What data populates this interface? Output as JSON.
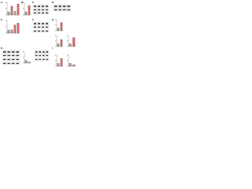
{
  "panel_labels": [
    "A",
    "B",
    "C",
    "D",
    "E",
    "F",
    "G",
    "H",
    "I"
  ],
  "chart_data": [
    {
      "type": "bar",
      "categories": [
        null,
        null,
        null,
        null
      ],
      "values": [
        1,
        2.8,
        1.2,
        3.5
      ],
      "colors": [
        "#9e9e9e",
        "#e06666",
        "#9e9e9e",
        "#e06666"
      ],
      "ylim": [
        0,
        4
      ],
      "yticks": [
        0,
        2,
        4
      ]
    },
    {
      "type": "bar",
      "categories": [
        null,
        null
      ],
      "values": [
        1,
        3
      ],
      "colors": [
        "#9e9e9e",
        "#e06666"
      ],
      "ylim": [
        0,
        4
      ],
      "yticks": [
        0,
        2,
        4
      ]
    },
    {
      "type": "bar",
      "categories": [
        null,
        null,
        null,
        null
      ],
      "values": [
        1,
        1.1,
        2.6,
        3.2
      ],
      "colors": [
        "#9e9e9e",
        "#9e9e9e",
        "#e06666",
        "#e06666"
      ],
      "ylim": [
        0,
        4
      ],
      "yticks": [
        0,
        2,
        4
      ]
    },
    {
      "type": "bar",
      "categories": [
        null,
        null
      ],
      "values": [
        1,
        3
      ],
      "colors": [
        "#9e9e9e",
        "#e06666"
      ],
      "ylim": [
        0,
        4
      ],
      "yticks": [
        0,
        2,
        4
      ]
    },
    {
      "type": "bar",
      "categories": [
        null,
        null
      ],
      "values": [
        1,
        2.5
      ],
      "colors": [
        "#9e9e9e",
        "#e06666"
      ],
      "ylim": [
        0,
        4
      ],
      "yticks": [
        0,
        2,
        4
      ]
    },
    {
      "type": "bar",
      "categories": [
        null,
        null
      ],
      "values": [
        1,
        3.2
      ],
      "colors": [
        "#9e9e9e",
        "#e06666"
      ],
      "ylim": [
        0,
        4
      ],
      "yticks": [
        0,
        2,
        4
      ]
    },
    {
      "type": "bar",
      "categories": [
        null,
        null
      ],
      "values": [
        1,
        0.4
      ],
      "colors": [
        "#9e9e9e",
        "#e06666"
      ],
      "ylim": [
        0,
        4
      ],
      "yticks": [
        0,
        2,
        4
      ]
    },
    {
      "type": "bar",
      "categories": [
        null,
        null
      ],
      "values": [
        1,
        2.8
      ],
      "colors": [
        "#9e9e9e",
        "#e06666"
      ],
      "ylim": [
        0,
        4
      ],
      "yticks": [
        0,
        2,
        4
      ]
    },
    {
      "type": "bar",
      "categories": [
        null,
        null
      ],
      "values": [
        1,
        0.5
      ],
      "colors": [
        "#9e9e9e",
        "#e06666"
      ],
      "ylim": [
        0,
        4
      ],
      "yticks": [
        0,
        2,
        4
      ]
    }
  ]
}
